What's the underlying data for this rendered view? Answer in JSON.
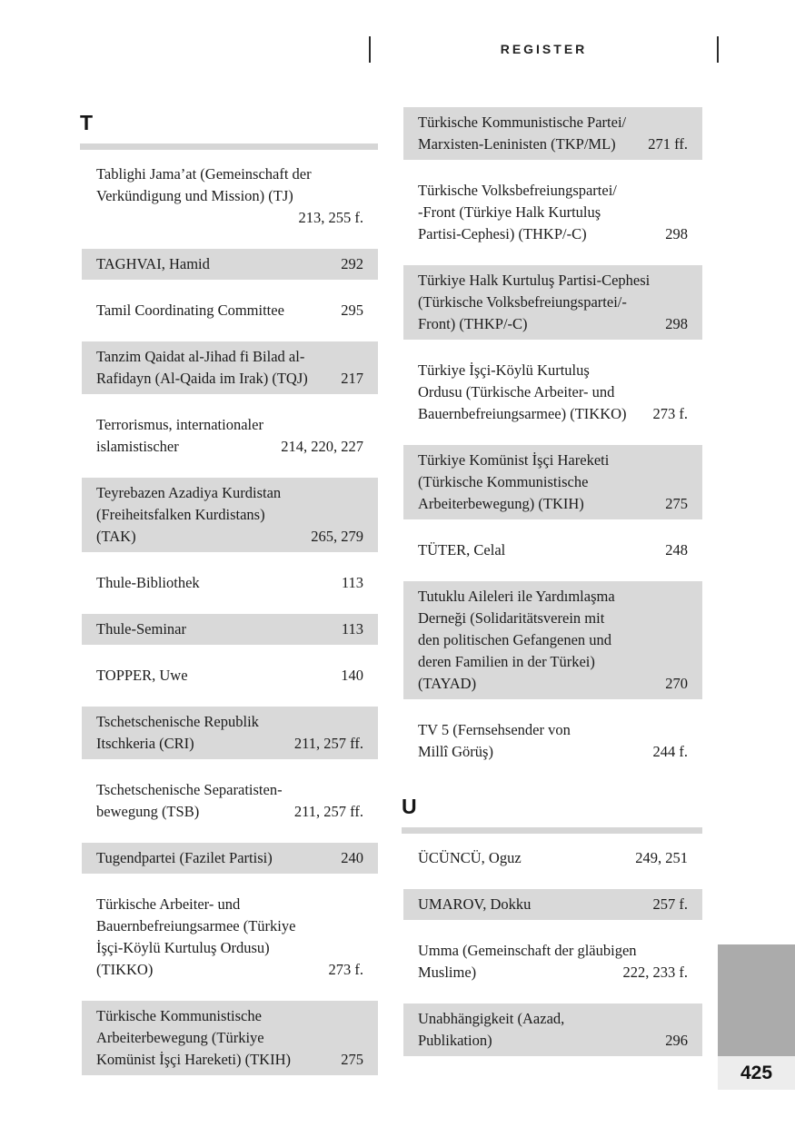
{
  "header": {
    "title": "REGISTER"
  },
  "footer": {
    "page_number": "425"
  },
  "colors": {
    "highlight_bg": "#d9d9d9",
    "divider": "#d6d6d6",
    "side_block": "#ababab",
    "page_number_bg": "#ededed",
    "text": "#1b1b1b"
  },
  "columns": [
    {
      "blocks": [
        {
          "type": "heading",
          "label": "T"
        },
        {
          "type": "entry",
          "highlight": false,
          "lines": [
            "Tablighi Jama’at (Gemeinschaft der",
            "Verkündigung und Mission) (TJ)",
            ""
          ],
          "pages": "213, 255 f."
        },
        {
          "type": "entry",
          "highlight": true,
          "lines": [
            "TAGHVAI, Hamid"
          ],
          "pages": "292"
        },
        {
          "type": "entry",
          "highlight": false,
          "lines": [
            "Tamil Coordinating Committee"
          ],
          "pages": "295"
        },
        {
          "type": "entry",
          "highlight": true,
          "lines": [
            "Tanzim Qaidat al-Jihad fi Bilad al-",
            "Rafidayn (Al-Qaida im Irak) (TQJ)"
          ],
          "pages": "217"
        },
        {
          "type": "entry",
          "highlight": false,
          "lines": [
            "Terrorismus, internationaler",
            "islamistischer"
          ],
          "pages": "214, 220, 227"
        },
        {
          "type": "entry",
          "highlight": true,
          "lines": [
            "Teyrebazen Azadiya Kurdistan",
            "(Freiheitsfalken Kurdistans)",
            "(TAK)"
          ],
          "pages": "265, 279"
        },
        {
          "type": "entry",
          "highlight": false,
          "lines": [
            "Thule-Bibliothek"
          ],
          "pages": "113"
        },
        {
          "type": "entry",
          "highlight": true,
          "lines": [
            "Thule-Seminar"
          ],
          "pages": "113"
        },
        {
          "type": "entry",
          "highlight": false,
          "lines": [
            "TOPPER, Uwe"
          ],
          "pages": "140"
        },
        {
          "type": "entry",
          "highlight": true,
          "lines": [
            "Tschetschenische Republik",
            "Itschkeria (CRI)"
          ],
          "pages": "211, 257 ff."
        },
        {
          "type": "entry",
          "highlight": false,
          "lines": [
            "Tschetschenische Separatisten-",
            "bewegung (TSB)"
          ],
          "pages": "211, 257 ff."
        },
        {
          "type": "entry",
          "highlight": true,
          "lines": [
            "Tugendpartei (Fazilet Partisi)"
          ],
          "pages": "240"
        },
        {
          "type": "entry",
          "highlight": false,
          "lines": [
            "Türkische Arbeiter- und",
            "Bauernbefreiungsarmee (Türkiye",
            "İşçi-Köylü Kurtuluş Ordusu)",
            "(TIKKO)"
          ],
          "pages": "273 f."
        },
        {
          "type": "entry",
          "highlight": true,
          "lines": [
            "Türkische Kommunistische",
            "Arbeiterbewegung (Türkiye",
            "Komünist İşçi Hareketi) (TKIH)"
          ],
          "pages": "275"
        }
      ]
    },
    {
      "blocks": [
        {
          "type": "entry",
          "highlight": true,
          "lines": [
            "Türkische Kommunistische Partei/",
            "Marxisten-Leninisten (TKP/ML)"
          ],
          "pages": "271 ff."
        },
        {
          "type": "entry",
          "highlight": false,
          "lines": [
            "Türkische Volksbefreiungspartei/",
            "-Front (Türkiye Halk Kurtuluş",
            "Partisi-Cephesi) (THKP/-C)"
          ],
          "pages": "298"
        },
        {
          "type": "entry",
          "highlight": true,
          "lines": [
            "Türkiye Halk Kurtuluş Partisi-Cephesi",
            "(Türkische Volksbefreiungspartei/-",
            "Front) (THKP/-C)"
          ],
          "pages": "298"
        },
        {
          "type": "entry",
          "highlight": false,
          "lines": [
            "Türkiye İşçi-Köylü Kurtuluş",
            "Ordusu (Türkische Arbeiter- und",
            "Bauernbefreiungsarmee) (TIKKO)"
          ],
          "pages": "273 f."
        },
        {
          "type": "entry",
          "highlight": true,
          "lines": [
            "Türkiye Komünist İşçi Hareketi",
            "(Türkische Kommunistische",
            "Arbeiterbewegung) (TKIH)"
          ],
          "pages": "275"
        },
        {
          "type": "entry",
          "highlight": false,
          "lines": [
            "TÜTER, Celal"
          ],
          "pages": "248"
        },
        {
          "type": "entry",
          "highlight": true,
          "lines": [
            "Tutuklu Aileleri ile Yardımlaşma",
            "Derneği (Solidaritätsverein mit",
            "den politischen Gefangenen und",
            "deren Familien in der Türkei)",
            "(TAYAD)"
          ],
          "pages": "270"
        },
        {
          "type": "entry",
          "highlight": false,
          "lines": [
            "TV 5 (Fernsehsender von",
            "Millî Görüş)"
          ],
          "pages": "244 f."
        },
        {
          "type": "heading",
          "label": "U"
        },
        {
          "type": "entry",
          "highlight": false,
          "lines": [
            "ÜCÜNCÜ, Oguz"
          ],
          "pages": "249, 251"
        },
        {
          "type": "entry",
          "highlight": true,
          "lines": [
            "UMAROV, Dokku"
          ],
          "pages": "257 f."
        },
        {
          "type": "entry",
          "highlight": false,
          "lines": [
            "Umma (Gemeinschaft der gläubigen",
            "Muslime)"
          ],
          "pages": "222, 233 f."
        },
        {
          "type": "entry",
          "highlight": true,
          "lines": [
            "Unabhängigkeit (Aazad,",
            "Publikation)"
          ],
          "pages": "296"
        }
      ]
    }
  ]
}
